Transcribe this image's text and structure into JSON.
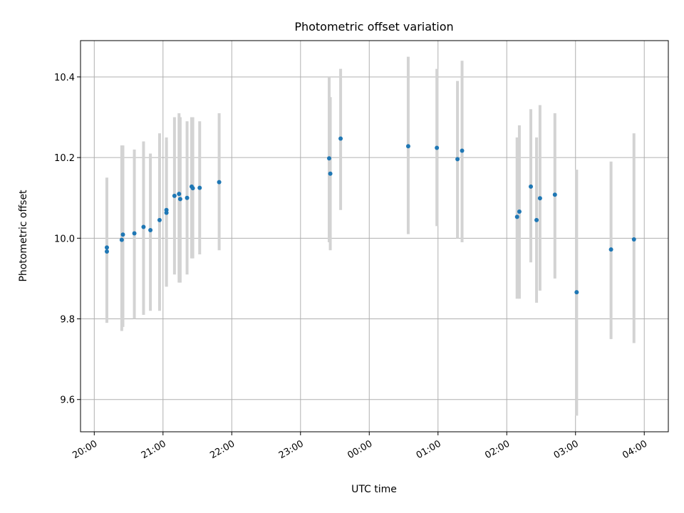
{
  "chart_data": {
    "type": "scatter",
    "title": "Photometric offset variation",
    "xlabel": "UTC time",
    "ylabel": "Photometric offset",
    "grid": true,
    "xlim_hours": [
      19.8,
      28.35
    ],
    "ylim": [
      9.52,
      10.49
    ],
    "xticks": [
      {
        "label": "20:00",
        "h": 20
      },
      {
        "label": "21:00",
        "h": 21
      },
      {
        "label": "22:00",
        "h": 22
      },
      {
        "label": "23:00",
        "h": 23
      },
      {
        "label": "00:00",
        "h": 24
      },
      {
        "label": "01:00",
        "h": 25
      },
      {
        "label": "02:00",
        "h": 26
      },
      {
        "label": "03:00",
        "h": 27
      },
      {
        "label": "04:00",
        "h": 28
      }
    ],
    "yticks": [
      9.6,
      9.8,
      10.0,
      10.2,
      10.4
    ],
    "ytick_labels": [
      "9.6",
      "9.8",
      "10.0",
      "10.2",
      "10.4"
    ],
    "point_color": "#1f77b4",
    "errorbar_color": "#d3d3d3",
    "points": [
      {
        "t": "20:11",
        "y": 9.967,
        "lo": 9.79,
        "hi": 10.15
      },
      {
        "t": "20:11",
        "y": 9.977,
        "lo": 9.8,
        "hi": 10.15
      },
      {
        "t": "20:24",
        "y": 9.996,
        "lo": 9.77,
        "hi": 10.23
      },
      {
        "t": "20:25",
        "y": 10.009,
        "lo": 9.78,
        "hi": 10.23
      },
      {
        "t": "20:35",
        "y": 10.012,
        "lo": 9.8,
        "hi": 10.22
      },
      {
        "t": "20:43",
        "y": 10.028,
        "lo": 9.81,
        "hi": 10.24
      },
      {
        "t": "20:49",
        "y": 10.02,
        "lo": 9.82,
        "hi": 10.21
      },
      {
        "t": "20:57",
        "y": 10.045,
        "lo": 9.82,
        "hi": 10.26
      },
      {
        "t": "21:03",
        "y": 10.07,
        "lo": 9.88,
        "hi": 10.25
      },
      {
        "t": "21:03",
        "y": 10.063,
        "lo": 9.88,
        "hi": 10.24
      },
      {
        "t": "21:10",
        "y": 10.105,
        "lo": 9.91,
        "hi": 10.3
      },
      {
        "t": "21:14",
        "y": 10.11,
        "lo": 9.89,
        "hi": 10.31
      },
      {
        "t": "21:15",
        "y": 10.097,
        "lo": 9.89,
        "hi": 10.3
      },
      {
        "t": "21:21",
        "y": 10.1,
        "lo": 9.91,
        "hi": 10.29
      },
      {
        "t": "21:25",
        "y": 10.128,
        "lo": 9.95,
        "hi": 10.3
      },
      {
        "t": "21:26",
        "y": 10.124,
        "lo": 9.95,
        "hi": 10.3
      },
      {
        "t": "21:32",
        "y": 10.125,
        "lo": 9.96,
        "hi": 10.29
      },
      {
        "t": "21:49",
        "y": 10.139,
        "lo": 9.97,
        "hi": 10.31
      },
      {
        "t": "23:25",
        "y": 10.198,
        "lo": 9.99,
        "hi": 10.4
      },
      {
        "t": "23:26",
        "y": 10.16,
        "lo": 9.97,
        "hi": 10.35
      },
      {
        "t": "23:35",
        "y": 10.247,
        "lo": 10.07,
        "hi": 10.42
      },
      {
        "t": "00:34",
        "y": 10.228,
        "lo": 10.01,
        "hi": 10.45
      },
      {
        "t": "00:59",
        "y": 10.224,
        "lo": 10.03,
        "hi": 10.42
      },
      {
        "t": "01:17",
        "y": 10.196,
        "lo": 10.0,
        "hi": 10.39
      },
      {
        "t": "01:21",
        "y": 10.217,
        "lo": 9.99,
        "hi": 10.44
      },
      {
        "t": "02:09",
        "y": 10.053,
        "lo": 9.85,
        "hi": 10.25
      },
      {
        "t": "02:11",
        "y": 10.066,
        "lo": 9.85,
        "hi": 10.28
      },
      {
        "t": "02:21",
        "y": 10.128,
        "lo": 9.94,
        "hi": 10.32
      },
      {
        "t": "02:26",
        "y": 10.045,
        "lo": 9.84,
        "hi": 10.25
      },
      {
        "t": "02:29",
        "y": 10.099,
        "lo": 9.87,
        "hi": 10.33
      },
      {
        "t": "02:42",
        "y": 10.108,
        "lo": 9.9,
        "hi": 10.31
      },
      {
        "t": "03:01",
        "y": 9.866,
        "lo": 9.56,
        "hi": 10.17
      },
      {
        "t": "03:31",
        "y": 9.972,
        "lo": 9.75,
        "hi": 10.19
      },
      {
        "t": "03:51",
        "y": 9.997,
        "lo": 9.74,
        "hi": 10.26
      }
    ]
  }
}
